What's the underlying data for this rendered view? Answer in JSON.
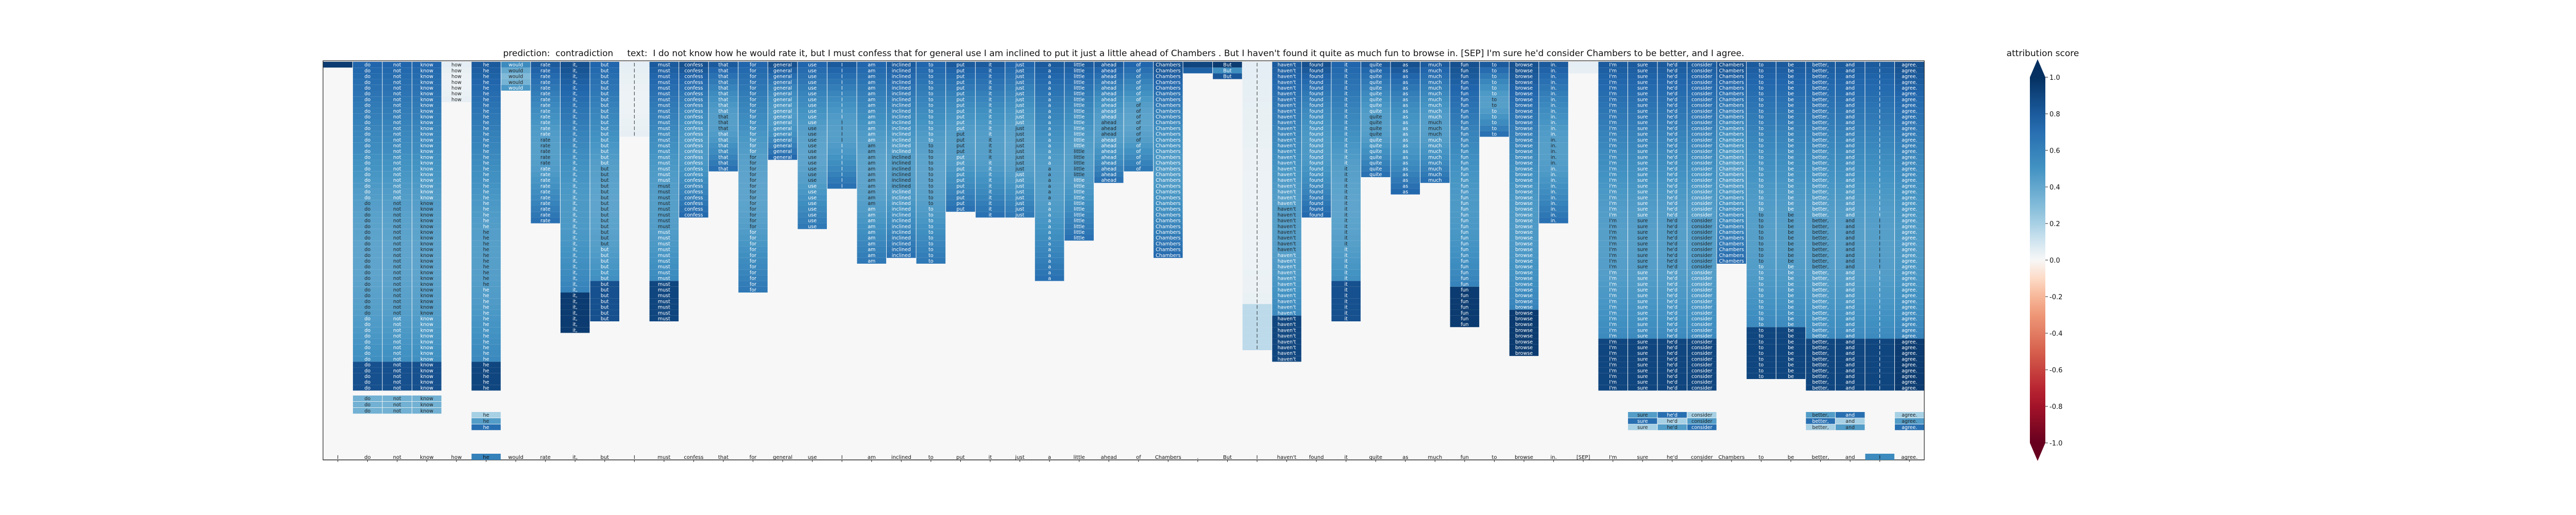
{
  "title": "prediction:  contradiction     text:  I do not know how he would rate it, but I must confess that for general use I am inclined to put it just a little ahead of Chambers . But I haven't found it quite as much fun to browse in. [SEP] I'm sure he'd consider Chambers to be better, and I agree.",
  "chart_data": {
    "type": "heatmap",
    "title": "prediction:  contradiction     text:  I do not know how he would rate it, but I must confess that for general use I am inclined to put it just a little ahead of Chambers . But I haven't found it quite as much fun to browse in. [SEP] I'm sure he'd consider Chambers to be better, and I agree.",
    "tokens": [
      "I",
      "do",
      "not",
      "know",
      "how",
      "he",
      "would",
      "rate",
      "it,",
      "but",
      "I",
      "must",
      "confess",
      "that",
      "for",
      "general",
      "use",
      "I",
      "am",
      "inclined",
      "to",
      "put",
      "it",
      "just",
      "a",
      "little",
      "ahead",
      "of",
      "Chambers",
      ".",
      "But",
      "I",
      "haven't",
      "found",
      "it",
      "quite",
      "as",
      "much",
      "fun",
      "to",
      "browse",
      "in.",
      "[SEP]",
      "I'm",
      "sure",
      "he'd",
      "consider",
      "Chambers",
      "to",
      "be",
      "better,",
      "and",
      "I",
      "agree."
    ],
    "column_depths": [
      1,
      61,
      61,
      61,
      7,
      61,
      5,
      28,
      47,
      45,
      13,
      45,
      27,
      19,
      40,
      17,
      29,
      22,
      35,
      34,
      35,
      26,
      27,
      27,
      38,
      31,
      21,
      19,
      34,
      2,
      3,
      50,
      52,
      27,
      45,
      20,
      23,
      21,
      46,
      13,
      51,
      28,
      2,
      57,
      57,
      57,
      57,
      35,
      55,
      55,
      57,
      57,
      57,
      57
    ],
    "column_scores": [
      0.95,
      0.75,
      0.75,
      0.75,
      0.05,
      0.8,
      0.55,
      0.8,
      0.85,
      0.75,
      0.05,
      0.8,
      0.85,
      0.8,
      0.75,
      0.85,
      0.75,
      0.8,
      0.75,
      0.8,
      0.75,
      0.8,
      0.8,
      0.75,
      0.8,
      0.8,
      0.8,
      0.75,
      0.85,
      0.9,
      0.95,
      0.05,
      0.8,
      0.85,
      0.75,
      0.8,
      0.85,
      0.8,
      0.85,
      0.8,
      0.85,
      0.8,
      0.05,
      0.8,
      0.8,
      0.8,
      0.8,
      0.85,
      0.8,
      0.8,
      0.8,
      0.8,
      0.8,
      0.85
    ],
    "bottom_highlight_index": 5,
    "bottom_highlight_score": 0.6,
    "second_bottom_highlight_index": 52,
    "second_bottom_highlight_score": 0.55,
    "colorbar": {
      "label": "attribution score",
      "min": -1.0,
      "max": 1.0,
      "ticks": [
        "1.0",
        "0.8",
        "0.6",
        "0.4",
        "0.2",
        "0.0",
        "-0.2",
        "-0.4",
        "-0.6",
        "-0.8",
        "-1.0"
      ],
      "colormap": "RdBu"
    }
  }
}
